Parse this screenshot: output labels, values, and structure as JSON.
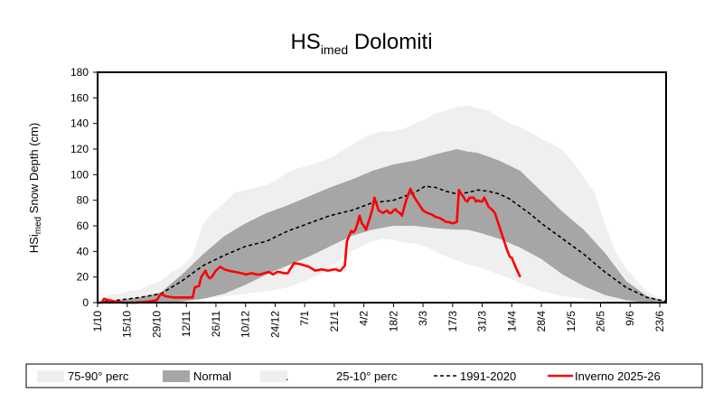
{
  "chart_data": {
    "type": "area",
    "title": "HS",
    "title_sub": "imed",
    "title_rest": " Dolomiti",
    "ylabel_a": "HSi",
    "ylabel_sub": "med",
    "ylabel_b": " Snow Depth  (cm)",
    "ylim": [
      0,
      180
    ],
    "yticks": [
      "0",
      "20",
      "40",
      "60",
      "80",
      "100",
      "120",
      "140",
      "160",
      "180"
    ],
    "xlim": [
      0,
      269
    ],
    "xticks": [
      {
        "day": 0,
        "label": "1/10"
      },
      {
        "day": 14,
        "label": "15/10"
      },
      {
        "day": 28,
        "label": "29/10"
      },
      {
        "day": 42,
        "label": "12/11"
      },
      {
        "day": 56,
        "label": "26/11"
      },
      {
        "day": 70,
        "label": "10/12"
      },
      {
        "day": 84,
        "label": "24/12"
      },
      {
        "day": 98,
        "label": "7/1"
      },
      {
        "day": 112,
        "label": "21/1"
      },
      {
        "day": 126,
        "label": "4/2"
      },
      {
        "day": 140,
        "label": "18/2"
      },
      {
        "day": 154,
        "label": "3/3"
      },
      {
        "day": 168,
        "label": "17/3"
      },
      {
        "day": 182,
        "label": "31/3"
      },
      {
        "day": 196,
        "label": "14/4"
      },
      {
        "day": 210,
        "label": "28/4"
      },
      {
        "day": 224,
        "label": "12/5"
      },
      {
        "day": 238,
        "label": "26/5"
      },
      {
        "day": 252,
        "label": "9/6"
      },
      {
        "day": 266,
        "label": "23/6"
      }
    ],
    "grid": false,
    "legend": [
      {
        "label": "75-90° perc",
        "kind": "area",
        "color": "#efefef"
      },
      {
        "label": "Normal",
        "kind": "area",
        "color": "#a6a6a6"
      },
      {
        "label": ".",
        "kind": "area",
        "color": "#efefef"
      },
      {
        "label": "25-10° perc",
        "kind": "none",
        "color": "#ffffff"
      },
      {
        "label": "1991-2020",
        "kind": "dash",
        "color": "#000000"
      },
      {
        "label": "Inverno 2025-26",
        "kind": "line",
        "color": "#ff0000"
      }
    ],
    "colors": {
      "outer_band": "#efefef",
      "normal_band": "#a6a6a6",
      "median": "#000000",
      "season": "#ff0000"
    },
    "series": [
      {
        "name": "75-90° perc",
        "x": [
          0,
          5,
          10,
          15,
          20,
          25,
          30,
          35,
          40,
          45,
          50,
          55,
          60,
          65,
          70,
          75,
          80,
          85,
          90,
          95,
          100,
          105,
          110,
          115,
          120,
          125,
          130,
          135,
          140,
          145,
          150,
          155,
          160,
          165,
          170,
          175,
          180,
          185,
          190,
          195,
          200,
          205,
          210,
          215,
          220,
          225,
          230,
          235,
          240,
          245,
          250,
          255,
          260,
          265,
          269
        ],
        "upper": [
          0,
          6,
          7,
          9,
          10,
          14,
          17,
          24,
          28,
          37,
          62,
          71,
          78,
          86,
          88,
          90,
          92,
          96,
          102,
          105,
          107,
          110,
          113,
          118,
          123,
          128,
          132,
          134,
          134,
          136,
          140,
          143,
          148,
          150,
          153,
          154,
          152,
          150,
          145,
          140,
          137,
          133,
          128,
          124,
          119,
          110,
          98,
          86,
          62,
          40,
          27,
          17,
          9,
          4,
          2
        ],
        "lower": [
          0,
          0,
          0,
          0,
          0,
          0,
          0,
          0,
          1,
          2,
          3,
          4,
          5,
          6,
          7,
          8,
          9,
          10,
          12,
          15,
          18,
          22,
          28,
          33,
          40,
          44,
          48,
          50,
          49,
          47,
          46,
          44,
          40,
          36,
          33,
          30,
          28,
          25,
          22,
          19,
          15,
          12,
          9,
          7,
          5,
          4,
          3,
          2,
          1,
          0,
          0,
          0,
          0,
          0,
          0
        ]
      },
      {
        "name": "Normal",
        "x": [
          0,
          10,
          20,
          30,
          40,
          50,
          60,
          70,
          80,
          90,
          100,
          110,
          120,
          130,
          140,
          150,
          160,
          170,
          175,
          180,
          190,
          200,
          210,
          220,
          230,
          240,
          250,
          260,
          269
        ],
        "upper": [
          0,
          2,
          4,
          8,
          22,
          38,
          52,
          62,
          70,
          76,
          83,
          90,
          96,
          103,
          108,
          111,
          116,
          120,
          118,
          117,
          111,
          103,
          87,
          71,
          57,
          39,
          17,
          5,
          1
        ],
        "lower": [
          0,
          0,
          0,
          0,
          1,
          3,
          7,
          14,
          22,
          29,
          36,
          44,
          52,
          57,
          60,
          60,
          58,
          57,
          57,
          55,
          50,
          43,
          34,
          22,
          13,
          6,
          2,
          0,
          0
        ]
      },
      {
        "name": "1991-2020",
        "x": [
          0,
          10,
          20,
          30,
          40,
          50,
          60,
          70,
          80,
          90,
          100,
          110,
          120,
          130,
          140,
          150,
          155,
          160,
          165,
          170,
          175,
          180,
          185,
          190,
          195,
          200,
          205,
          210,
          220,
          230,
          240,
          250,
          260,
          269
        ],
        "values": [
          0,
          2,
          4,
          7,
          17,
          29,
          37,
          44,
          48,
          56,
          62,
          68,
          72,
          78,
          80,
          86,
          91,
          90,
          87,
          85,
          86,
          88,
          87,
          85,
          81,
          75,
          69,
          62,
          50,
          38,
          24,
          12,
          4,
          1
        ]
      },
      {
        "name": "Inverno 2025-26",
        "x": [
          0,
          2,
          3,
          5,
          8,
          12,
          15,
          18,
          25,
          28,
          30,
          32,
          36,
          40,
          42,
          45,
          46,
          48,
          49,
          51,
          52,
          53,
          54,
          56,
          58,
          60,
          62,
          65,
          68,
          70,
          73,
          75,
          77,
          79,
          81,
          83,
          85,
          86,
          88,
          90,
          93,
          96,
          100,
          103,
          106,
          109,
          112,
          113,
          114,
          115,
          116,
          117,
          118,
          120,
          121,
          122,
          123,
          124,
          125,
          126,
          127,
          128,
          129,
          130,
          131,
          133,
          135,
          136,
          137,
          138,
          139,
          140,
          141,
          142,
          143,
          144,
          146,
          148,
          150,
          152,
          154,
          156,
          158,
          160,
          162,
          163,
          164,
          165,
          166,
          168,
          170,
          171,
          172,
          173,
          174,
          175,
          176,
          177,
          178,
          179,
          180,
          181,
          182,
          183,
          185,
          187,
          188,
          189,
          190,
          191,
          192,
          193,
          194,
          195,
          196,
          198,
          200
        ],
        "values": [
          0,
          0,
          3,
          2,
          1,
          0,
          0,
          0,
          1,
          2,
          7,
          5,
          4,
          4,
          4,
          4,
          12,
          13,
          20,
          25,
          21,
          19,
          20,
          25,
          28,
          26,
          25,
          24,
          23,
          22,
          23,
          22,
          22,
          23,
          24,
          22,
          24,
          24,
          23,
          23,
          31,
          30,
          28,
          25,
          26,
          25,
          26,
          26,
          25,
          25,
          27,
          29,
          48,
          56,
          55,
          57,
          62,
          68,
          62,
          60,
          57,
          62,
          67,
          73,
          82,
          72,
          70,
          71,
          72,
          70,
          70,
          72,
          73,
          71,
          70,
          68,
          80,
          89,
          82,
          77,
          72,
          70,
          69,
          67,
          66,
          65,
          64,
          63,
          63,
          62,
          63,
          88,
          85,
          83,
          80,
          79,
          82,
          82,
          82,
          79,
          80,
          79,
          79,
          82,
          75,
          72,
          70,
          65,
          60,
          55,
          50,
          45,
          40,
          36,
          35,
          27,
          20
        ]
      }
    ]
  }
}
